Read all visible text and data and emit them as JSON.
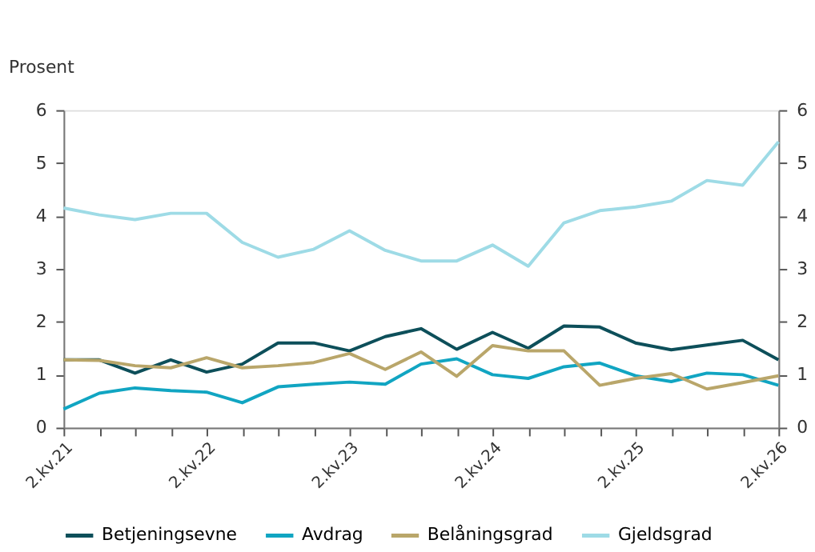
{
  "chart_data": {
    "type": "line",
    "ylabel": "Prosent",
    "categories": [
      "2.kv.21",
      null,
      null,
      null,
      "2.kv.22",
      null,
      null,
      null,
      "2.kv.23",
      null,
      null,
      null,
      "2.kv.24",
      null,
      null,
      null,
      "2.kv.25",
      null,
      null,
      null,
      "2.kv.26"
    ],
    "series": [
      {
        "name": "Betjeningsevne",
        "color": "#0d4f5a",
        "values": [
          1.28,
          1.28,
          1.03,
          1.28,
          1.05,
          1.2,
          1.6,
          1.6,
          1.45,
          1.72,
          1.87,
          1.48,
          1.8,
          1.5,
          1.92,
          1.9,
          1.6,
          1.47,
          1.56,
          1.65,
          1.28
        ]
      },
      {
        "name": "Avdrag",
        "color": "#11a5c2",
        "values": [
          0.35,
          0.65,
          0.75,
          0.7,
          0.67,
          0.47,
          0.77,
          0.82,
          0.86,
          0.82,
          1.2,
          1.3,
          1.0,
          0.93,
          1.15,
          1.22,
          0.98,
          0.87,
          1.03,
          1.0,
          0.8
        ]
      },
      {
        "name": "Belåningsgrad",
        "color": "#b9a66a",
        "values": [
          1.28,
          1.27,
          1.17,
          1.13,
          1.32,
          1.13,
          1.17,
          1.23,
          1.4,
          1.1,
          1.43,
          0.97,
          1.55,
          1.45,
          1.45,
          0.8,
          0.93,
          1.02,
          0.73,
          0.85,
          0.98
        ]
      },
      {
        "name": "Gjeldsgrad",
        "color": "#9edbe6",
        "values": [
          4.15,
          4.02,
          3.93,
          4.05,
          4.05,
          3.5,
          3.22,
          3.37,
          3.72,
          3.35,
          3.15,
          3.15,
          3.45,
          3.05,
          3.87,
          4.1,
          4.17,
          4.28,
          4.67,
          4.58,
          5.4
        ]
      }
    ],
    "ylim": [
      0,
      6
    ],
    "yticks": [
      0,
      1,
      2,
      3,
      4,
      5,
      6
    ],
    "y2lim": [
      0,
      6
    ],
    "y2ticks": [
      0,
      1,
      2,
      3,
      4,
      5,
      6
    ],
    "grid": false,
    "legend": "bottom",
    "marker": "none",
    "line_style": "solid"
  }
}
